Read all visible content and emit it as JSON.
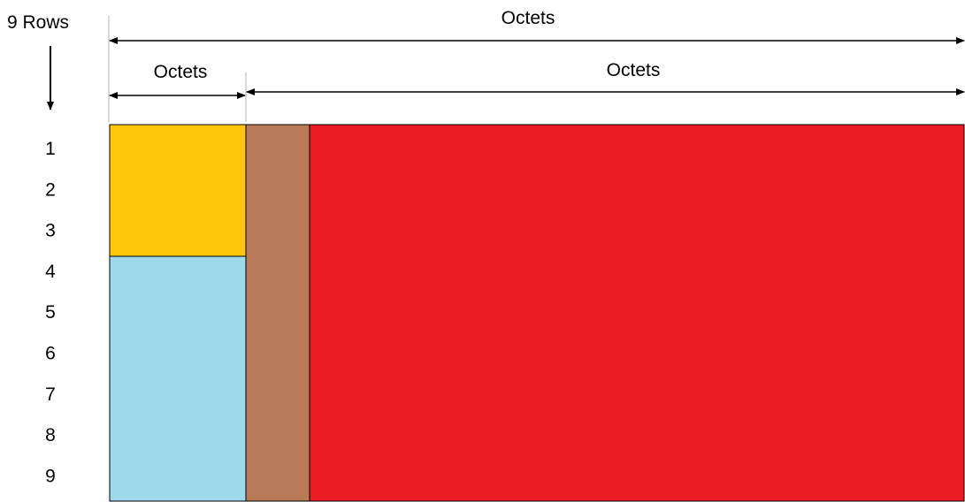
{
  "rows_label": "9 Rows",
  "top_span_label": "Octets",
  "left_span_label": "Octets",
  "right_span_label": "Octets",
  "row_numbers": [
    "1",
    "2",
    "3",
    "4",
    "5",
    "6",
    "7",
    "8",
    "9"
  ],
  "colors": {
    "top_left_block": "#FFC60B",
    "bottom_left_block": "#9DD9EA",
    "middle_column": "#B87A57",
    "main_area": "#EC1C24",
    "lines": "#000000"
  }
}
